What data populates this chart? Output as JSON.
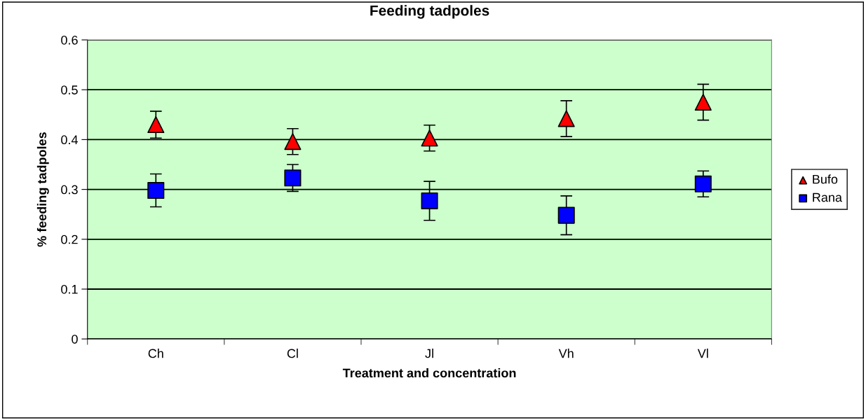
{
  "chart_data": {
    "type": "scatter",
    "title": "Feeding tadpoles",
    "xlabel": "Treatment and concentration",
    "ylabel": "% feeding tadpoles",
    "categories": [
      "Ch",
      "Cl",
      "Jl",
      "Vh",
      "Vl"
    ],
    "series": [
      {
        "name": "Bufo",
        "color": "#ff0000",
        "marker": "triangle",
        "values": [
          0.43,
          0.396,
          0.403,
          0.442,
          0.475
        ],
        "errors": [
          0.027,
          0.026,
          0.026,
          0.036,
          0.036
        ]
      },
      {
        "name": "Rana",
        "color": "#0000ff",
        "marker": "square",
        "values": [
          0.298,
          0.323,
          0.277,
          0.248,
          0.311
        ],
        "errors": [
          0.033,
          0.027,
          0.039,
          0.039,
          0.026
        ]
      }
    ],
    "ylim": [
      0,
      0.6
    ],
    "yticks": [
      0,
      0.1,
      0.2,
      0.3,
      0.4,
      0.5,
      0.6
    ],
    "grid": "y",
    "legend": "right"
  }
}
